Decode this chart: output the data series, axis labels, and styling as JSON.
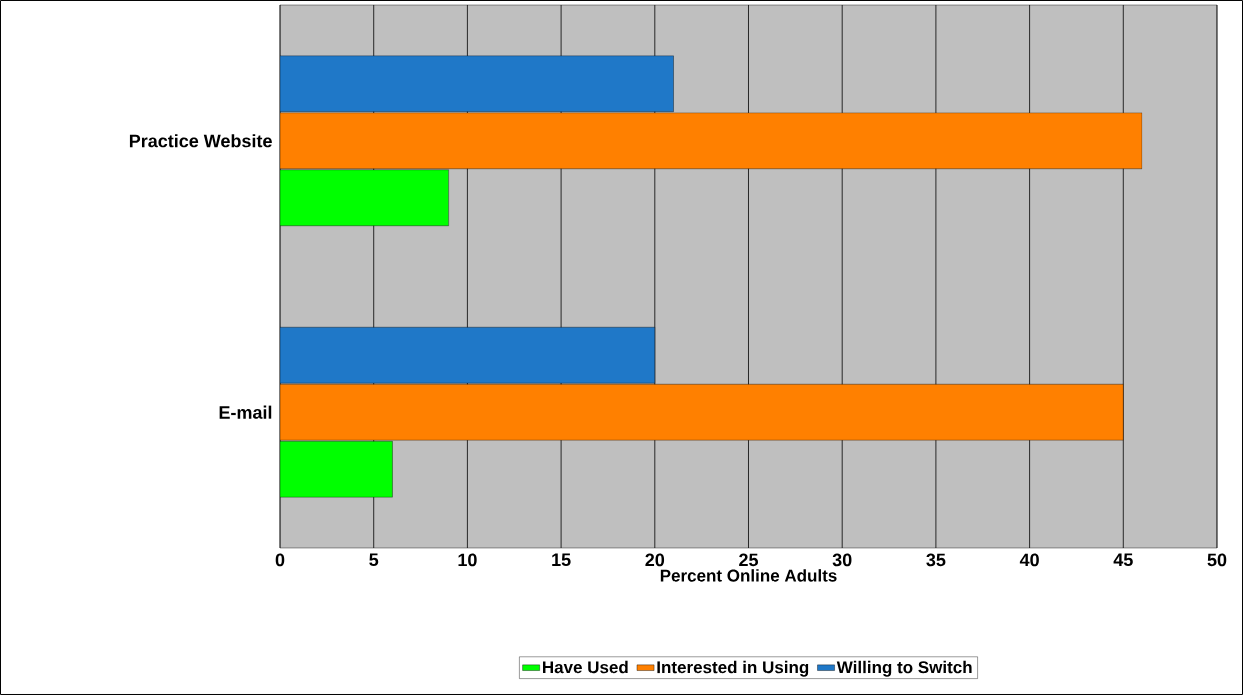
{
  "chart_data": {
    "type": "bar",
    "orientation": "horizontal",
    "categories": [
      "Practice Website",
      "E-mail"
    ],
    "series": [
      {
        "name": "Have Used",
        "color": "#00ff00",
        "values": [
          9,
          6
        ]
      },
      {
        "name": "Interested in Using",
        "color": "#ff8000",
        "values": [
          46,
          45
        ]
      },
      {
        "name": "Willing to Switch",
        "color": "#1f78c8",
        "values": [
          21,
          20
        ]
      }
    ],
    "xlabel": "Percent Online Adults",
    "xlim": [
      0,
      50
    ],
    "xticks": [
      0,
      5,
      10,
      15,
      20,
      25,
      30,
      35,
      40,
      45,
      50
    ],
    "grid": "x",
    "legend": "bottom"
  }
}
